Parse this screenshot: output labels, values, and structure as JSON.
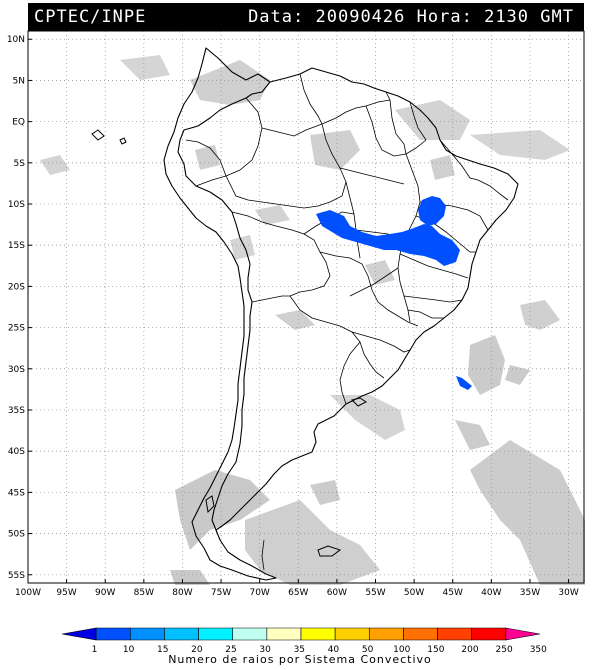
{
  "header": {
    "source": "CPTEC/INPE",
    "date_label": "Data:",
    "date_value": "20090426",
    "time_label": "Hora:",
    "time_value": "2130",
    "tz": "GMT"
  },
  "map": {
    "lat_labels": [
      "10N",
      "5N",
      "EQ",
      "5S",
      "10S",
      "15S",
      "20S",
      "25S",
      "30S",
      "35S",
      "40S",
      "45S",
      "50S",
      "55S"
    ],
    "lon_labels": [
      "100W",
      "95W",
      "90W",
      "85W",
      "80W",
      "75W",
      "70W",
      "65W",
      "60W",
      "55W",
      "50W",
      "45W",
      "40W",
      "35W",
      "30W"
    ],
    "lat_range": [
      11,
      -56
    ],
    "lon_range": [
      -100,
      -28
    ],
    "grid": true,
    "cloud_color": "#c8c8c8",
    "coast_color": "#000000"
  },
  "colorbar": {
    "ticks": [
      "1",
      "10",
      "15",
      "20",
      "25",
      "30",
      "35",
      "40",
      "50",
      "100",
      "150",
      "200",
      "250",
      "350"
    ],
    "colors": [
      "#0000e0",
      "#0050ff",
      "#0090ff",
      "#00c0ff",
      "#00f0ff",
      "#c0fff0",
      "#ffffc0",
      "#ffff00",
      "#ffd000",
      "#ffa000",
      "#ff7000",
      "#ff4000",
      "#ff0000",
      "#ff0090"
    ],
    "title": "Numero de raios por Sistema Convectivo"
  }
}
